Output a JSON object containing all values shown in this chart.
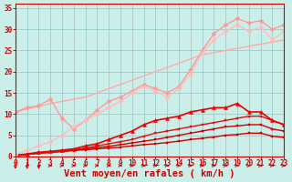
{
  "xlabel": "Vent moyen/en rafales ( km/h )",
  "xlim": [
    0,
    23
  ],
  "ylim": [
    0,
    36
  ],
  "yticks": [
    0,
    5,
    10,
    15,
    20,
    25,
    30,
    35
  ],
  "xticks": [
    0,
    1,
    2,
    3,
    4,
    5,
    6,
    7,
    8,
    9,
    10,
    11,
    12,
    13,
    14,
    15,
    16,
    17,
    18,
    19,
    20,
    21,
    22,
    23
  ],
  "bg_color": "#cceee8",
  "grid_color": "#99cccc",
  "lines": [
    {
      "x": [
        0,
        1,
        2,
        3,
        4,
        5,
        6,
        7,
        8,
        9,
        10,
        11,
        12,
        13,
        14,
        15,
        16,
        17,
        18,
        19,
        20,
        21,
        22,
        23
      ],
      "y": [
        0.2,
        0.5,
        0.8,
        1.0,
        1.2,
        1.4,
        1.6,
        1.8,
        2.0,
        2.2,
        2.5,
        2.8,
        3.0,
        3.3,
        3.6,
        4.0,
        4.3,
        4.6,
        5.0,
        5.2,
        5.5,
        5.5,
        4.8,
        4.5
      ],
      "color": "#cc0000",
      "marker": "s",
      "markersize": 2.0,
      "linewidth": 1.0
    },
    {
      "x": [
        0,
        1,
        2,
        3,
        4,
        5,
        6,
        7,
        8,
        9,
        10,
        11,
        12,
        13,
        14,
        15,
        16,
        17,
        18,
        19,
        20,
        21,
        22,
        23
      ],
      "y": [
        0.2,
        0.5,
        0.8,
        1.0,
        1.2,
        1.5,
        1.8,
        2.1,
        2.4,
        2.8,
        3.2,
        3.6,
        4.0,
        4.5,
        5.0,
        5.5,
        6.0,
        6.5,
        7.0,
        7.2,
        7.5,
        7.5,
        6.5,
        6.0
      ],
      "color": "#cc0000",
      "marker": "s",
      "markersize": 2.0,
      "linewidth": 1.0
    },
    {
      "x": [
        0,
        1,
        2,
        3,
        4,
        5,
        6,
        7,
        8,
        9,
        10,
        11,
        12,
        13,
        14,
        15,
        16,
        17,
        18,
        19,
        20,
        21,
        22,
        23
      ],
      "y": [
        0.2,
        0.5,
        0.8,
        1.0,
        1.3,
        1.6,
        2.0,
        2.5,
        3.0,
        3.5,
        4.0,
        4.8,
        5.5,
        6.0,
        6.5,
        7.0,
        7.5,
        8.0,
        8.5,
        9.0,
        9.5,
        9.5,
        8.5,
        7.5
      ],
      "color": "#dd1111",
      "marker": "s",
      "markersize": 2.0,
      "linewidth": 1.0
    },
    {
      "x": [
        0,
        1,
        2,
        3,
        4,
        5,
        6,
        7,
        8,
        9,
        10,
        11,
        12,
        13,
        14,
        15,
        16,
        17,
        18,
        19,
        20,
        21,
        22,
        23
      ],
      "y": [
        0.3,
        0.6,
        1.0,
        1.2,
        1.5,
        1.8,
        2.5,
        3.0,
        4.0,
        5.0,
        6.0,
        7.5,
        8.5,
        9.0,
        9.5,
        10.5,
        11.0,
        11.5,
        11.5,
        12.5,
        10.5,
        10.5,
        8.5,
        7.5
      ],
      "color": "#ee0000",
      "marker": "^",
      "markersize": 3.0,
      "linewidth": 1.2
    },
    {
      "x": [
        0,
        1,
        2,
        3,
        4,
        5,
        6,
        7,
        8,
        9,
        10,
        11,
        12,
        13,
        14,
        15,
        16,
        17,
        18,
        19,
        20,
        21,
        22,
        23
      ],
      "y": [
        10.5,
        11.2,
        11.8,
        12.5,
        13.0,
        13.5,
        14.0,
        15.0,
        16.0,
        17.0,
        18.0,
        19.0,
        20.0,
        21.0,
        22.0,
        23.0,
        24.0,
        24.5,
        25.0,
        25.5,
        26.0,
        26.5,
        27.0,
        27.5
      ],
      "color": "#ffaaaa",
      "marker": null,
      "markersize": 0,
      "linewidth": 1.0
    },
    {
      "x": [
        0,
        1,
        2,
        3,
        4,
        5,
        6,
        7,
        8,
        9,
        10,
        11,
        12,
        13,
        14,
        15,
        16,
        17,
        18,
        19,
        20,
        21,
        22,
        23
      ],
      "y": [
        10.5,
        11.5,
        12.0,
        13.5,
        9.0,
        6.5,
        8.5,
        11.0,
        13.0,
        14.0,
        15.5,
        17.0,
        16.0,
        15.0,
        16.5,
        20.5,
        25.0,
        29.0,
        31.0,
        32.5,
        31.5,
        32.0,
        30.0,
        31.0
      ],
      "color": "#ff9999",
      "marker": "D",
      "markersize": 2.5,
      "linewidth": 1.0
    },
    {
      "x": [
        0,
        1,
        2,
        3,
        4,
        5,
        6,
        7,
        8,
        9,
        10,
        11,
        12,
        13,
        14,
        15,
        16,
        17,
        18,
        19,
        20,
        21,
        22,
        23
      ],
      "y": [
        0.5,
        1.5,
        2.5,
        3.5,
        5.0,
        7.0,
        8.5,
        10.0,
        11.5,
        13.0,
        15.0,
        16.5,
        15.5,
        14.0,
        16.0,
        19.5,
        24.5,
        27.5,
        29.5,
        31.0,
        29.5,
        30.5,
        27.5,
        29.5
      ],
      "color": "#ffbbbb",
      "marker": "D",
      "markersize": 2.5,
      "linewidth": 1.0
    }
  ],
  "xlabel_color": "#cc0000",
  "xlabel_fontsize": 7.5,
  "tick_color": "#cc0000",
  "tick_fontsize": 5.5,
  "ytick_fontsize": 5.5
}
